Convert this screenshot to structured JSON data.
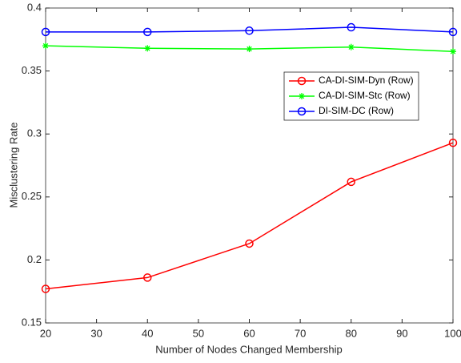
{
  "chart_data": {
    "type": "line",
    "x_label": "Number of Nodes Changed Membership",
    "y_label": "Misclustering Rate",
    "x": [
      20,
      40,
      60,
      80,
      100
    ],
    "series": [
      {
        "name": "CA-DI-SIM-Dyn (Row)",
        "color": "#ff0000",
        "marker": "circle",
        "values": [
          0.177,
          0.186,
          0.213,
          0.262,
          0.293
        ]
      },
      {
        "name": "CA-DI-SIM-Stc (Row)",
        "color": "#00ff00",
        "marker": "asterisk",
        "values": [
          0.37,
          0.368,
          0.3675,
          0.369,
          0.3655
        ]
      },
      {
        "name": "DI-SIM-DC (Row)",
        "color": "#0000ff",
        "marker": "circle",
        "values": [
          0.381,
          0.381,
          0.382,
          0.3847,
          0.381
        ]
      }
    ],
    "xlim": [
      20,
      100
    ],
    "xticks": [
      20,
      30,
      40,
      50,
      60,
      70,
      80,
      90,
      100
    ],
    "ylim": [
      0.15,
      0.4
    ],
    "yticks": [
      0.15,
      0.2,
      0.25,
      0.3,
      0.35,
      0.4
    ],
    "grid": false,
    "legend": "northeast"
  }
}
